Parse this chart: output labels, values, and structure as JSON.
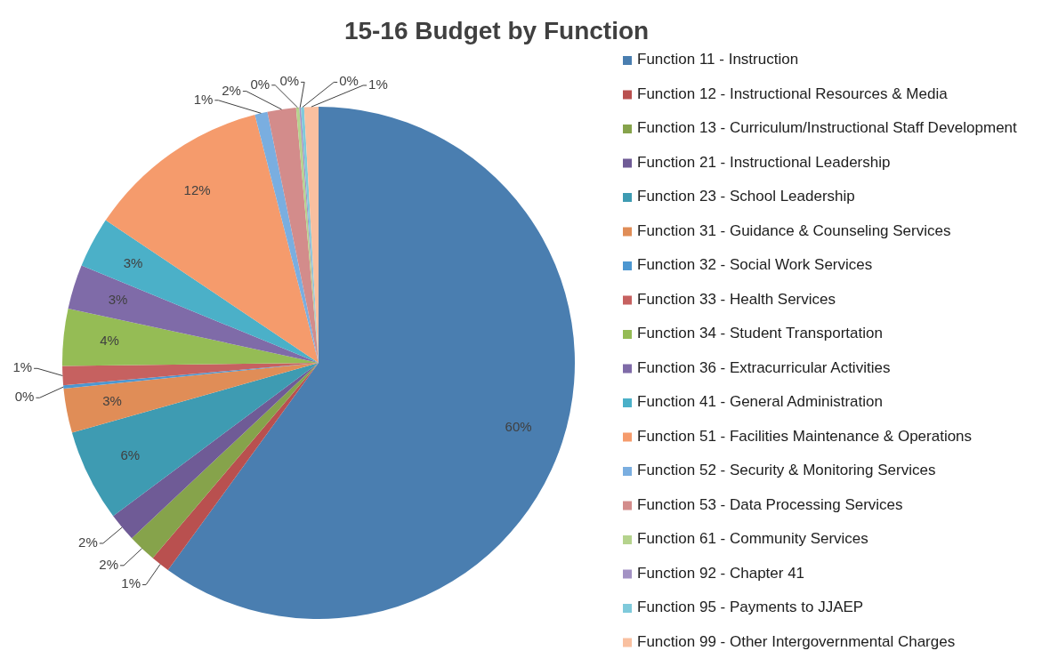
{
  "chart_data": {
    "type": "pie",
    "title": "15-16 Budget by Function",
    "categories": [
      "Function 11 - Instruction",
      "Function 12 - Instructional Resources & Media",
      "Function 13 - Curriculum/Instructional Staff Development",
      "Function 21 - Instructional Leadership",
      "Function 23 - School Leadership",
      "Function 31 - Guidance & Counseling Services",
      "Function 32 - Social Work Services",
      "Function 33 - Health Services",
      "Function 34 - Student Transportation",
      "Function 36 - Extracurricular Activities",
      "Function 41 - General Administration",
      "Function 51 - Facilities Maintenance & Operations",
      "Function 52 - Security & Monitoring Services",
      "Function 53 - Data Processing Services",
      "Function 61 - Community Services",
      "Function 92 - Chapter 41",
      "Function 95 - Payments to JJAEP",
      "Function 99 - Other Intergovernmental Charges"
    ],
    "values": [
      60.0,
      1.2,
      1.8,
      1.8,
      5.8,
      2.8,
      0.2,
      1.2,
      3.6,
      2.8,
      3.2,
      11.6,
      0.8,
      1.8,
      0.2,
      0.1,
      0.2,
      0.9
    ],
    "value_labels": [
      "60%",
      "1%",
      "2%",
      "2%",
      "6%",
      "3%",
      "0%",
      "1%",
      "4%",
      "3%",
      "3%",
      "12%",
      "1%",
      "2%",
      "0%",
      "0%",
      "0%",
      "1%"
    ],
    "colors": [
      "#4a7eb0",
      "#b9504f",
      "#86a34b",
      "#6f5b96",
      "#3e9bb2",
      "#e08d57",
      "#4c97d1",
      "#c66160",
      "#95bc55",
      "#7f6ba8",
      "#4bb0c8",
      "#f59b6c",
      "#7aaee0",
      "#d38c8b",
      "#b5d38d",
      "#a392c4",
      "#7fcadb",
      "#f9c0a0"
    ],
    "legend": "right"
  }
}
